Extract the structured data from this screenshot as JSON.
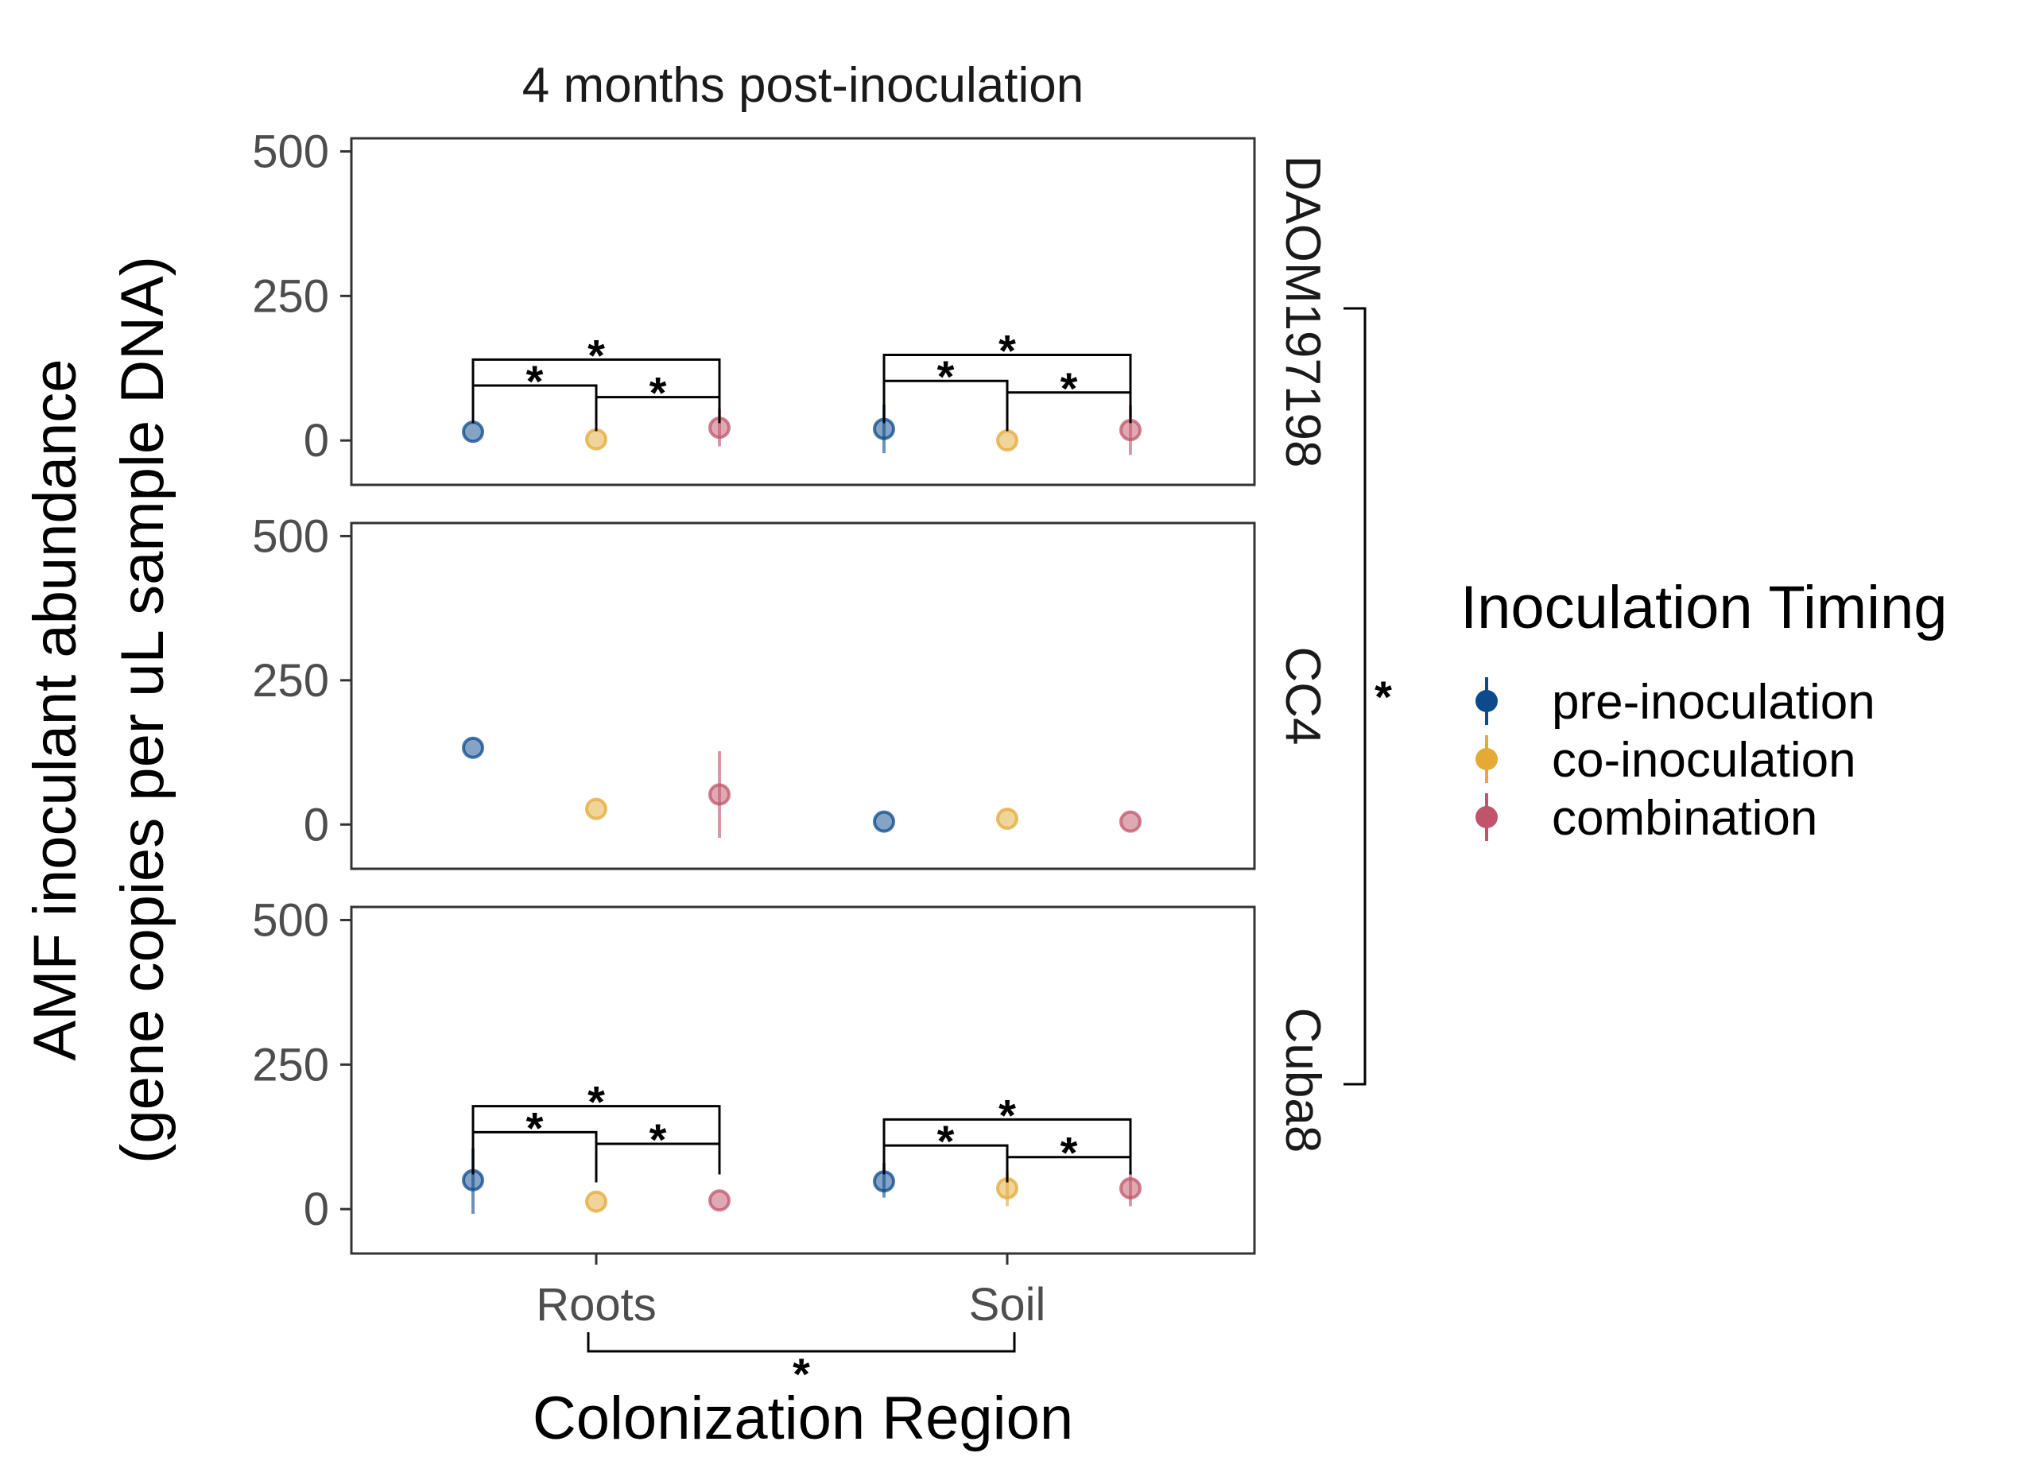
{
  "chart_data": {
    "type": "scatter",
    "title": "4 months post-inoculation",
    "xlabel": "Colonization Region",
    "ylabel_line1": "AMF inoculant abundance",
    "ylabel_line2": "(gene copies per uL sample DNA)",
    "categories": [
      "Roots",
      "Soil"
    ],
    "ylim": [
      -65,
      525
    ],
    "yticks": [
      "0",
      "250",
      "500"
    ],
    "grid": false,
    "legend": {
      "title": "Inoculation Timing",
      "position": "right",
      "entries": [
        {
          "name": "pre-inoculation",
          "color": "#0b4a8b"
        },
        {
          "name": "co-inoculation",
          "color": "#e3aa35"
        },
        {
          "name": "combination",
          "color": "#c0546a"
        }
      ]
    },
    "panels": [
      {
        "strain": "DAOM197198",
        "series": [
          {
            "name": "pre-inoculation",
            "values": [
              15,
              20
            ],
            "low": [
              15,
              -22
            ],
            "high": [
              15,
              62
            ]
          },
          {
            "name": "co-inoculation",
            "values": [
              2,
              0
            ],
            "low": [
              2,
              0
            ],
            "high": [
              2,
              0
            ]
          },
          {
            "name": "combination",
            "values": [
              22,
              18
            ],
            "low": [
              -10,
              -25
            ],
            "high": [
              55,
              61
            ]
          }
        ],
        "significance": [
          {
            "category": "Roots",
            "label": "*"
          },
          {
            "category": "Soil",
            "label": "*"
          }
        ]
      },
      {
        "strain": "CC4",
        "series": [
          {
            "name": "pre-inoculation",
            "values": [
              133,
              5
            ],
            "low": [
              133,
              5
            ],
            "high": [
              133,
              5
            ]
          },
          {
            "name": "co-inoculation",
            "values": [
              27,
              10
            ],
            "low": [
              27,
              10
            ],
            "high": [
              27,
              10
            ]
          },
          {
            "name": "combination",
            "values": [
              52,
              5
            ],
            "low": [
              -23,
              5
            ],
            "high": [
              127,
              5
            ]
          }
        ],
        "significance": []
      },
      {
        "strain": "Cuba8",
        "series": [
          {
            "name": "pre-inoculation",
            "values": [
              50,
              48
            ],
            "low": [
              -8,
              20
            ],
            "high": [
              105,
              80
            ]
          },
          {
            "name": "co-inoculation",
            "values": [
              13,
              36
            ],
            "low": [
              13,
              5
            ],
            "high": [
              13,
              65
            ]
          },
          {
            "name": "combination",
            "values": [
              15,
              36
            ],
            "low": [
              15,
              5
            ],
            "high": [
              15,
              65
            ]
          }
        ],
        "significance": [
          {
            "category": "Roots",
            "label": "*"
          },
          {
            "category": "Soil",
            "label": "*"
          }
        ]
      }
    ],
    "region_comparison": "*",
    "strain_comparison": "*"
  }
}
